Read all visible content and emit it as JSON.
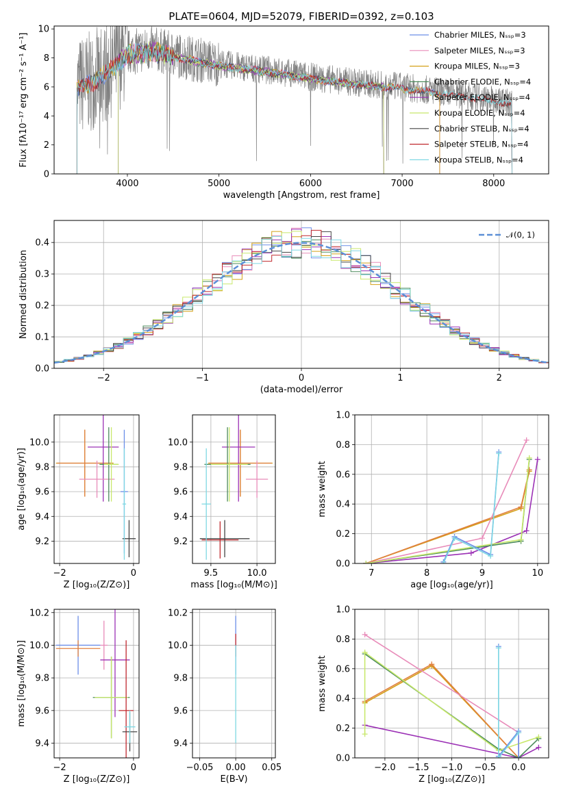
{
  "figure_title": "PLATE=0604, MJD=52079, FIBERID=0392, z=0.103",
  "chart_data": [
    {
      "id": "spectrum",
      "type": "line",
      "xlabel": "wavelength [Angstrom, rest frame]",
      "ylabel": "Flux [fλ10⁻¹⁷ erg cm⁻² s⁻¹ A⁻¹]",
      "xlim": [
        3200,
        8600
      ],
      "ylim": [
        0,
        10.2
      ],
      "xticks": [
        4000,
        5000,
        6000,
        7000,
        8000
      ],
      "yticks": [
        0,
        2,
        4,
        6,
        8,
        10
      ],
      "observed_color": "#808080",
      "observed_anchors": [
        [
          3450,
          6.0
        ],
        [
          3600,
          6.4
        ],
        [
          3800,
          7.2
        ],
        [
          4000,
          8.4
        ],
        [
          4300,
          8.6
        ],
        [
          4600,
          8.1
        ],
        [
          5000,
          7.6
        ],
        [
          5500,
          7.2
        ],
        [
          6000,
          6.7
        ],
        [
          6500,
          6.3
        ],
        [
          7000,
          6.0
        ],
        [
          7500,
          5.6
        ],
        [
          8000,
          5.1
        ],
        [
          8200,
          4.9
        ]
      ],
      "model_series": [
        {
          "name": "Chabrier MILES, Nₛₛₚ=3",
          "color": "#6b8ee8",
          "range": [
            3450,
            7410
          ]
        },
        {
          "name": "Salpeter MILES, Nₛₛₚ=3",
          "color": "#e88bb9",
          "range": [
            3450,
            7410
          ]
        },
        {
          "name": "Kroupa MILES, Nₛₛₚ=3",
          "color": "#d4a017",
          "range": [
            3450,
            7410
          ]
        },
        {
          "name": "Chabrier ELODIE, Nₛₛₚ=4",
          "color": "#4a8a5a",
          "range": [
            3900,
            6800
          ]
        },
        {
          "name": "Salpeter ELODIE, Nₛₛₚ=4",
          "color": "#9b30b5",
          "range": [
            3900,
            6800
          ]
        },
        {
          "name": "Kroupa ELODIE, Nₛₛₚ=4",
          "color": "#c8e86b",
          "range": [
            3900,
            6800
          ]
        },
        {
          "name": "Chabrier STELIB, Nₛₛₚ=4",
          "color": "#444444",
          "range": [
            3450,
            8200
          ]
        },
        {
          "name": "Salpeter STELIB, Nₛₛₚ=4",
          "color": "#c0282d",
          "range": [
            3450,
            8200
          ]
        },
        {
          "name": "Kroupa STELIB, Nₛₛₚ=4",
          "color": "#7fd8e3",
          "range": [
            3450,
            8200
          ]
        }
      ]
    },
    {
      "id": "residuals",
      "type": "line",
      "xlabel": "(data-model)/error",
      "ylabel": "Normed distribution",
      "xlim": [
        -2.5,
        2.5
      ],
      "ylim": [
        0,
        0.47
      ],
      "xticks": [
        -2,
        -1,
        0,
        1,
        2
      ],
      "yticks": [
        0.0,
        0.1,
        0.2,
        0.3,
        0.4
      ],
      "grid": true,
      "reference": {
        "name": "𝒩(0, 1)",
        "color": "#5b8fd6",
        "style": "dashed"
      },
      "legend_position": "top-right"
    },
    {
      "id": "age-vs-Z",
      "type": "scatter",
      "xlabel": "Z [log₁₀(Z/Z⊙)]",
      "ylabel": "age  [log₁₀(age/yr)]",
      "xlim": [
        -2.15,
        0.15
      ],
      "ylim": [
        9.02,
        10.22
      ],
      "xticks": [
        -2,
        0
      ],
      "yticks": [
        9.2,
        9.4,
        9.6,
        9.8,
        10.0
      ],
      "grid": true,
      "points": [
        {
          "x": -1.32,
          "y": 9.83,
          "xerr": 0.78,
          "yerr": 0.27,
          "color": "#d4a017"
        },
        {
          "x": -1.32,
          "y": 9.83,
          "xerr": 0.75,
          "yerr": 0.27,
          "color": "#e08040"
        },
        {
          "x": -0.82,
          "y": 9.96,
          "xerr": 0.42,
          "yerr": 0.44,
          "color": "#9b30b5"
        },
        {
          "x": -0.99,
          "y": 9.7,
          "xerr": 0.48,
          "yerr": 0.15,
          "color": "#e88bb9"
        },
        {
          "x": -0.67,
          "y": 9.82,
          "xerr": 0.25,
          "yerr": 0.3,
          "color": "#4a8a5a"
        },
        {
          "x": -0.6,
          "y": 9.82,
          "xerr": 0.2,
          "yerr": 0.3,
          "color": "#c8e86b"
        },
        {
          "x": -0.25,
          "y": 9.6,
          "xerr": 0.1,
          "yerr": 0.5,
          "color": "#6b8ee8"
        },
        {
          "x": -0.12,
          "y": 9.22,
          "xerr": 0.18,
          "yerr": 0.15,
          "color": "#444444"
        },
        {
          "x": -0.25,
          "y": 9.5,
          "xerr": 0.05,
          "yerr": 0.45,
          "color": "#7fd8e3"
        }
      ]
    },
    {
      "id": "age-vs-mass",
      "type": "scatter",
      "xlabel": "mass [log₁₀(M/M⊙)]",
      "ylabel": "",
      "xlim": [
        9.3,
        10.2
      ],
      "ylim": [
        9.02,
        10.22
      ],
      "xticks": [
        9.5,
        10.0
      ],
      "yticks": [
        9.2,
        9.4,
        9.6,
        9.8,
        10.0
      ],
      "grid": true,
      "points": [
        {
          "x": 9.82,
          "y": 9.83,
          "xerr": 0.35,
          "yerr": 0.27,
          "color": "#d4a017"
        },
        {
          "x": 9.82,
          "y": 9.83,
          "xerr": 0.34,
          "yerr": 0.27,
          "color": "#e08040"
        },
        {
          "x": 9.8,
          "y": 9.96,
          "xerr": 0.18,
          "yerr": 0.44,
          "color": "#9b30b5"
        },
        {
          "x": 10.0,
          "y": 9.7,
          "xerr": 0.12,
          "yerr": 0.15,
          "color": "#e88bb9"
        },
        {
          "x": 9.68,
          "y": 9.82,
          "xerr": 0.25,
          "yerr": 0.3,
          "color": "#4a8a5a"
        },
        {
          "x": 9.7,
          "y": 9.82,
          "xerr": 0.2,
          "yerr": 0.3,
          "color": "#c8e86b"
        },
        {
          "x": 9.6,
          "y": 9.21,
          "xerr": 0.2,
          "yerr": 0.15,
          "color": "#c0282d"
        },
        {
          "x": 9.65,
          "y": 9.22,
          "xerr": 0.27,
          "yerr": 0.15,
          "color": "#444444"
        },
        {
          "x": 9.45,
          "y": 9.5,
          "xerr": 0.05,
          "yerr": 0.45,
          "color": "#7fd8e3"
        }
      ]
    },
    {
      "id": "mass-weight-vs-age",
      "type": "line",
      "xlabel": "age  [log₁₀(age/yr)]",
      "ylabel": "mass weight",
      "xlim": [
        6.7,
        10.2
      ],
      "ylim": [
        0,
        1.0
      ],
      "xticks": [
        7,
        8,
        9,
        10
      ],
      "yticks": [
        0.0,
        0.2,
        0.4,
        0.6,
        0.8,
        1.0
      ],
      "grid": true,
      "series": [
        {
          "color": "#d4a017",
          "x": [
            6.9,
            9.7,
            9.85
          ],
          "y": [
            0.0,
            0.37,
            0.62
          ]
        },
        {
          "color": "#e08040",
          "x": [
            6.9,
            9.7,
            9.85
          ],
          "y": [
            0.0,
            0.38,
            0.63
          ]
        },
        {
          "color": "#e88bb9",
          "x": [
            6.9,
            9.0,
            9.8
          ],
          "y": [
            0.0,
            0.17,
            0.83
          ]
        },
        {
          "color": "#9b30b5",
          "x": [
            6.9,
            8.8,
            9.8,
            10.0
          ],
          "y": [
            0.0,
            0.07,
            0.22,
            0.7
          ]
        },
        {
          "color": "#4a8a5a",
          "x": [
            6.9,
            9.7,
            9.85
          ],
          "y": [
            0.0,
            0.15,
            0.7
          ]
        },
        {
          "color": "#c8e86b",
          "x": [
            6.9,
            9.7,
            9.85
          ],
          "y": [
            0.0,
            0.16,
            0.71
          ]
        },
        {
          "color": "#6b8ee8",
          "x": [
            8.3,
            8.5,
            9.15,
            9.3
          ],
          "y": [
            0.01,
            0.18,
            0.06,
            0.75
          ]
        },
        {
          "color": "#7fd8e3",
          "x": [
            8.3,
            8.5,
            9.15,
            9.3
          ],
          "y": [
            0.0,
            0.17,
            0.05,
            0.74
          ]
        }
      ]
    },
    {
      "id": "mass-vs-Z",
      "type": "scatter",
      "xlabel": "Z [log₁₀(Z/Z⊙)]",
      "ylabel": "mass [log₁₀(M/M⊙)]",
      "xlim": [
        -2.15,
        0.15
      ],
      "ylim": [
        9.31,
        10.22
      ],
      "xticks": [
        -2,
        0
      ],
      "yticks": [
        9.4,
        9.6,
        9.8,
        10.0,
        10.2
      ],
      "grid": true,
      "points": [
        {
          "x": -1.5,
          "y": 10.0,
          "xerr": 0.6,
          "yerr": 0.18,
          "color": "#6b8ee8"
        },
        {
          "x": -1.5,
          "y": 9.98,
          "xerr": 0.6,
          "yerr": 0.05,
          "color": "#e08040"
        },
        {
          "x": -0.8,
          "y": 10.0,
          "xerr": 0.1,
          "yerr": 0.15,
          "color": "#e88bb9"
        },
        {
          "x": -0.5,
          "y": 9.91,
          "xerr": 0.4,
          "yerr": 0.35,
          "color": "#9b30b5"
        },
        {
          "x": -0.6,
          "y": 9.68,
          "xerr": 0.5,
          "yerr": 0.25,
          "color": "#4a8a5a"
        },
        {
          "x": -0.6,
          "y": 9.68,
          "xerr": 0.45,
          "yerr": 0.25,
          "color": "#c8e86b"
        },
        {
          "x": -0.2,
          "y": 9.6,
          "xerr": 0.2,
          "yerr": 0.43,
          "color": "#c0282d"
        },
        {
          "x": -0.1,
          "y": 9.47,
          "xerr": 0.2,
          "yerr": 0.12,
          "color": "#444444"
        },
        {
          "x": -0.1,
          "y": 9.5,
          "xerr": 0.15,
          "yerr": 0.1,
          "color": "#7fd8e3"
        }
      ]
    },
    {
      "id": "mass-vs-ebv",
      "type": "scatter",
      "xlabel": "E(B-V)",
      "ylabel": "",
      "xlim": [
        -0.06,
        0.055
      ],
      "ylim": [
        9.31,
        10.22
      ],
      "xticks": [
        -0.05,
        0.0,
        0.05
      ],
      "yticks": [
        9.4,
        9.6,
        9.8,
        10.0,
        10.2
      ],
      "grid": true,
      "points": [
        {
          "x": 0.0,
          "y": 10.0,
          "xerr": 0,
          "yerr": 0.18,
          "color": "#6b8ee8"
        },
        {
          "x": 0.0,
          "y": 10.0,
          "xerr": 0,
          "yerr": 0.07,
          "color": "#c0282d"
        },
        {
          "x": 0.0,
          "y": 9.7,
          "xerr": 0,
          "yerr": 0.3,
          "color": "#7fd8e3"
        }
      ]
    },
    {
      "id": "mass-weight-vs-Z",
      "type": "line",
      "xlabel": "Z [log₁₀(Z/Z⊙)]",
      "ylabel": "mass weight",
      "xlim": [
        -2.45,
        0.45
      ],
      "ylim": [
        0,
        1.0
      ],
      "xticks": [
        -2.0,
        -1.5,
        -1.0,
        -0.5,
        0.0
      ],
      "yticks": [
        0.0,
        0.2,
        0.4,
        0.6,
        0.8,
        1.0
      ],
      "grid": true,
      "series": [
        {
          "color": "#d4a017",
          "x": [
            -2.3,
            -1.3,
            0.0
          ],
          "y": [
            0.37,
            0.62,
            0.0
          ]
        },
        {
          "color": "#e08040",
          "x": [
            -2.3,
            -1.3,
            0.0
          ],
          "y": [
            0.38,
            0.63,
            0.0
          ]
        },
        {
          "color": "#e88bb9",
          "x": [
            -2.3,
            0.0,
            0.0
          ],
          "y": [
            0.83,
            0.17,
            0.0
          ]
        },
        {
          "color": "#9b30b5",
          "x": [
            -2.3,
            0.0,
            0.3
          ],
          "y": [
            0.22,
            0.0,
            0.07
          ]
        },
        {
          "color": "#4a8a5a",
          "x": [
            -2.3,
            -0.3,
            0.0,
            0.3
          ],
          "y": [
            0.7,
            0.06,
            0.0,
            0.13
          ]
        },
        {
          "color": "#c8e86b",
          "x": [
            -2.3,
            -2.3,
            -0.3,
            0.3
          ],
          "y": [
            0.16,
            0.71,
            0.05,
            0.14
          ]
        },
        {
          "color": "#6b8ee8",
          "x": [
            -0.3,
            -0.3,
            0.0,
            0.0
          ],
          "y": [
            0.75,
            0.01,
            0.18,
            0.0
          ]
        },
        {
          "color": "#7fd8e3",
          "x": [
            -0.3,
            -0.3,
            0.0
          ],
          "y": [
            0.74,
            0.0,
            0.17
          ]
        }
      ]
    }
  ]
}
